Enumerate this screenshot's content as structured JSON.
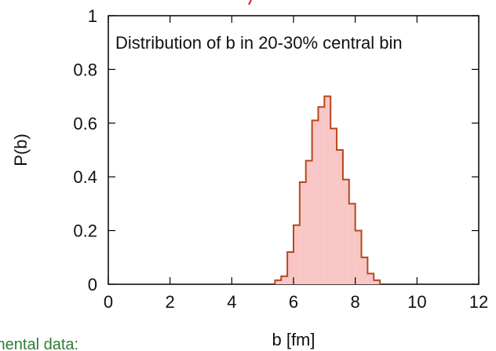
{
  "chart_data": {
    "type": "area",
    "title": "Distribution of b in 20-30% central bin",
    "xlabel": "b [fm]",
    "ylabel": "P(b)",
    "xlim": [
      0,
      12
    ],
    "ylim": [
      0,
      1
    ],
    "x_ticks": [
      "0",
      "2",
      "4",
      "6",
      "8",
      "10",
      "12"
    ],
    "y_ticks": [
      "0",
      "0.2",
      "0.4",
      "0.6",
      "0.8",
      "1"
    ],
    "grid": false,
    "bin_width": 0.2,
    "series": [
      {
        "bin_starts": [
          5.4,
          5.6,
          5.8,
          6.0,
          6.2,
          6.4,
          6.6,
          6.8,
          7.0,
          7.2,
          7.4,
          7.6,
          7.8,
          8.0,
          8.2,
          8.4,
          8.6
        ],
        "values": [
          0.015,
          0.03,
          0.12,
          0.22,
          0.38,
          0.46,
          0.61,
          0.66,
          0.7,
          0.58,
          0.5,
          0.39,
          0.3,
          0.2,
          0.1,
          0.04,
          0.015
        ]
      }
    ],
    "colors": {
      "line": "#b5481d",
      "fill": "#f9c6c6"
    }
  },
  "clipped_bottom_text": "mental data:"
}
